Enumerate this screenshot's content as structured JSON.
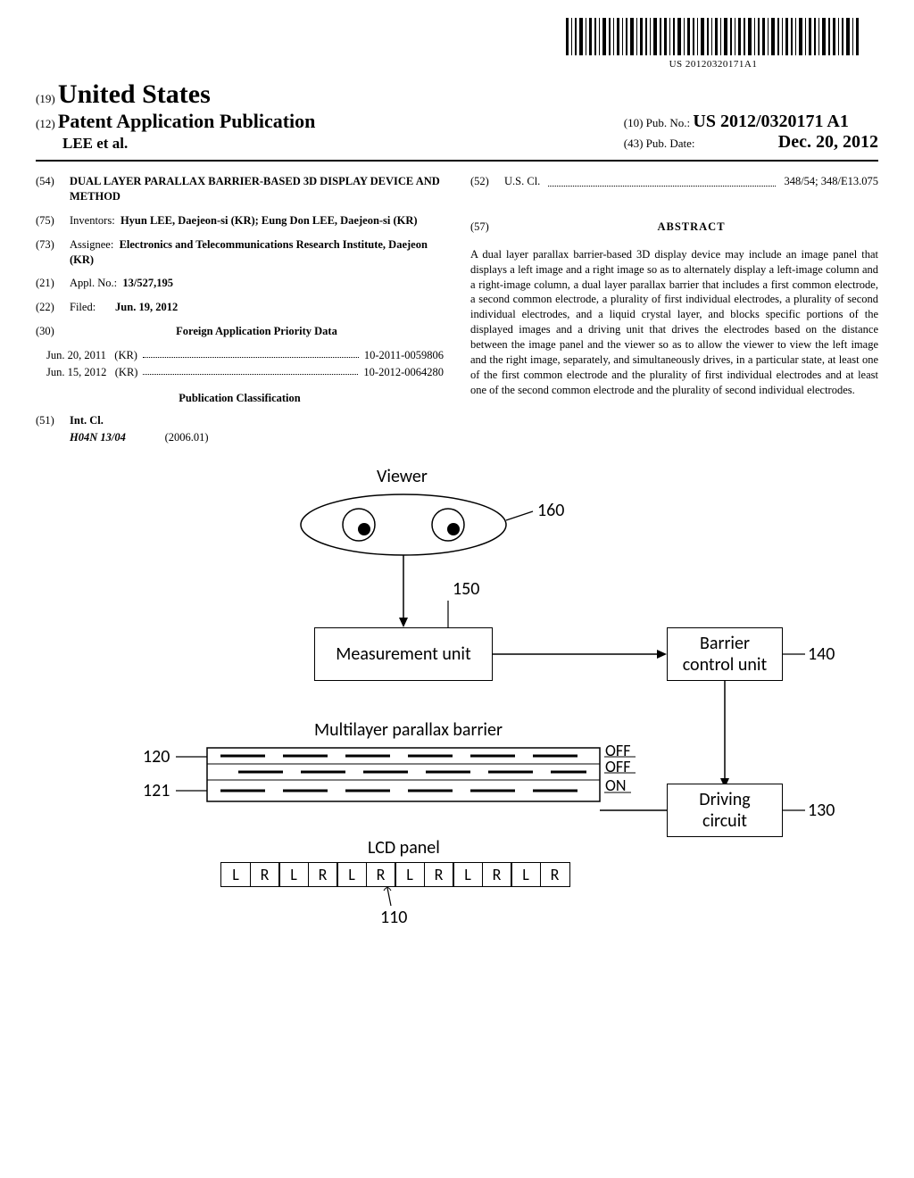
{
  "barcode_number": "US 20120320171A1",
  "header": {
    "line19": "(19)",
    "country": "United States",
    "line12": "(12)",
    "pubtype": "Patent Application Publication",
    "authors": "LEE et al.",
    "line10": "(10)",
    "pubno_label": "Pub. No.:",
    "pubno": "US 2012/0320171 A1",
    "line43": "(43)",
    "pubdate_label": "Pub. Date:",
    "pubdate": "Dec. 20, 2012"
  },
  "left_col": {
    "f54_num": "(54)",
    "f54_title": "DUAL LAYER PARALLAX BARRIER-BASED 3D DISPLAY DEVICE AND METHOD",
    "f75_num": "(75)",
    "f75_label": "Inventors:",
    "f75_val": "Hyun LEE, Daejeon-si (KR); Eung Don LEE, Daejeon-si (KR)",
    "f73_num": "(73)",
    "f73_label": "Assignee:",
    "f73_val": "Electronics and Telecommunications Research Institute, Daejeon (KR)",
    "f21_num": "(21)",
    "f21_label": "Appl. No.:",
    "f21_val": "13/527,195",
    "f22_num": "(22)",
    "f22_label": "Filed:",
    "f22_val": "Jun. 19, 2012",
    "f30_num": "(30)",
    "f30_head": "Foreign Application Priority Data",
    "priority": [
      {
        "date": "Jun. 20, 2011",
        "cc": "(KR)",
        "num": "10-2011-0059806"
      },
      {
        "date": "Jun. 15, 2012",
        "cc": "(KR)",
        "num": "10-2012-0064280"
      }
    ],
    "pubclass_head": "Publication Classification",
    "f51_num": "(51)",
    "f51_label": "Int. Cl.",
    "f51_code": "H04N 13/04",
    "f51_date": "(2006.01)"
  },
  "right_col": {
    "f52_num": "(52)",
    "f52_label": "U.S. Cl.",
    "f52_val": "348/54; 348/E13.075",
    "f57_num": "(57)",
    "abstract_head": "ABSTRACT",
    "abstract": "A dual layer parallax barrier-based 3D display device may include an image panel that displays a left image and a right image so as to alternately display a left-image column and a right-image column, a dual layer parallax barrier that includes a first common electrode, a second common electrode, a plurality of first individual electrodes, a plurality of second individual electrodes, and a liquid crystal layer, and blocks specific portions of the displayed images and a driving unit that drives the electrodes based on the distance between the image panel and the viewer so as to allow the viewer to view the left image and the right image, separately, and simultaneously drives, in a particular state, at least one of the first common electrode and the plurality of first individual electrodes and at least one of the second common electrode and the plurality of second individual electrodes."
  },
  "figure": {
    "viewer_label": "Viewer",
    "measurement": "Measurement unit",
    "barrier_control": "Barrier\ncontrol unit",
    "multilayer_label": "Multilayer parallax barrier",
    "driving_circuit": "Driving\ncircuit",
    "lcd_label": "LCD panel",
    "lcd_cells": [
      "L",
      "R",
      "L",
      "R",
      "L",
      "R",
      "L",
      "R",
      "L",
      "R",
      "L",
      "R"
    ],
    "off1": "OFF",
    "off2": "OFF",
    "on": "ON",
    "ref_160": "160",
    "ref_150": "150",
    "ref_140": "140",
    "ref_130": "130",
    "ref_120": "120",
    "ref_121": "121",
    "ref_110": "110",
    "colors": {
      "line": "#000000",
      "bg": "#ffffff"
    }
  }
}
